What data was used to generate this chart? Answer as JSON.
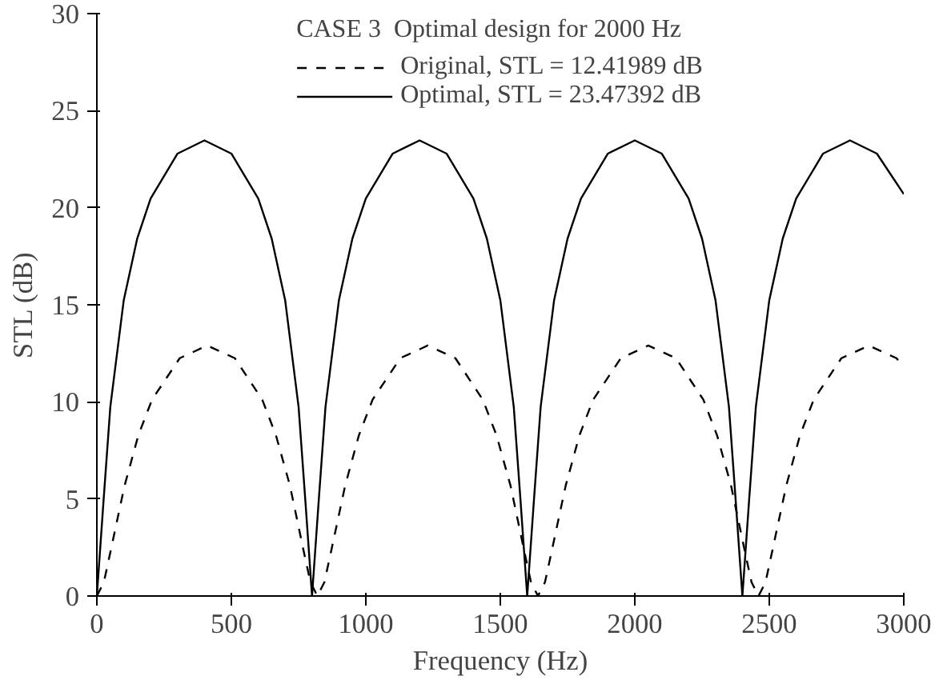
{
  "chart_data": {
    "type": "line",
    "xlabel": "Frequency (Hz)",
    "ylabel": "STL (dB)",
    "legend_title": "CASE 3  Optimal design for 2000 Hz",
    "xlim": [
      0,
      3000
    ],
    "ylim": [
      0,
      30
    ],
    "xticks": [
      0,
      500,
      1000,
      1500,
      2000,
      2500,
      3000
    ],
    "yticks": [
      0,
      5,
      10,
      15,
      20,
      25,
      30
    ],
    "grid": false,
    "legend": "top",
    "marker": "none",
    "series": [
      {
        "name": "Original, STL = 12.41989 dB",
        "color": "#000000",
        "line_style": "dashed",
        "x": [
          0,
          26,
          51,
          103,
          154,
          205,
          308,
          410,
          513,
          615,
          666,
          718,
          769,
          794,
          820,
          846,
          871,
          923,
          974,
          1025,
          1128,
          1230,
          1333,
          1435,
          1486,
          1538,
          1589,
          1614,
          1640,
          1666,
          1691,
          1743,
          1794,
          1845,
          1948,
          2050,
          2153,
          2255,
          2306,
          2358,
          2409,
          2434,
          2460,
          2486,
          2511,
          2563,
          2614,
          2665,
          2768,
          2870,
          2973,
          3000
        ],
        "values": [
          0,
          0.71,
          2.31,
          5.68,
          8.27,
          10.11,
          12.25,
          12.9,
          12.25,
          10.11,
          8.27,
          5.68,
          2.31,
          0.71,
          0,
          0.71,
          2.31,
          5.68,
          8.27,
          10.11,
          12.25,
          12.9,
          12.25,
          10.11,
          8.27,
          5.68,
          2.31,
          0.71,
          0,
          0.71,
          2.31,
          5.68,
          8.27,
          10.11,
          12.25,
          12.9,
          12.25,
          10.11,
          8.27,
          5.68,
          2.31,
          0.71,
          0,
          0.71,
          2.31,
          5.68,
          8.27,
          10.11,
          12.25,
          12.9,
          12.25,
          11.8
        ]
      },
      {
        "name": "Optimal, STL = 23.47392 dB",
        "color": "#000000",
        "line_style": "solid",
        "x": [
          0,
          25,
          50,
          100,
          150,
          200,
          300,
          400,
          500,
          600,
          650,
          700,
          750,
          775,
          800,
          825,
          850,
          900,
          950,
          1000,
          1100,
          1200,
          1300,
          1400,
          1450,
          1500,
          1550,
          1575,
          1600,
          1625,
          1650,
          1700,
          1750,
          1800,
          1900,
          2000,
          2100,
          2200,
          2250,
          2300,
          2350,
          2375,
          2400,
          2425,
          2450,
          2500,
          2550,
          2600,
          2700,
          2800,
          2900,
          3000
        ],
        "values": [
          0,
          4.94,
          9.74,
          15.24,
          18.41,
          20.48,
          22.79,
          23.47,
          22.79,
          20.48,
          18.41,
          15.24,
          9.74,
          4.94,
          0,
          4.94,
          9.74,
          15.24,
          18.41,
          20.48,
          22.79,
          23.47,
          22.79,
          20.48,
          18.41,
          15.24,
          9.74,
          4.94,
          0,
          4.94,
          9.74,
          15.24,
          18.41,
          20.48,
          22.79,
          23.47,
          22.79,
          20.48,
          18.41,
          15.24,
          9.74,
          4.94,
          0,
          4.94,
          9.74,
          15.24,
          18.41,
          20.48,
          22.79,
          23.47,
          22.79,
          20.7
        ]
      }
    ]
  }
}
